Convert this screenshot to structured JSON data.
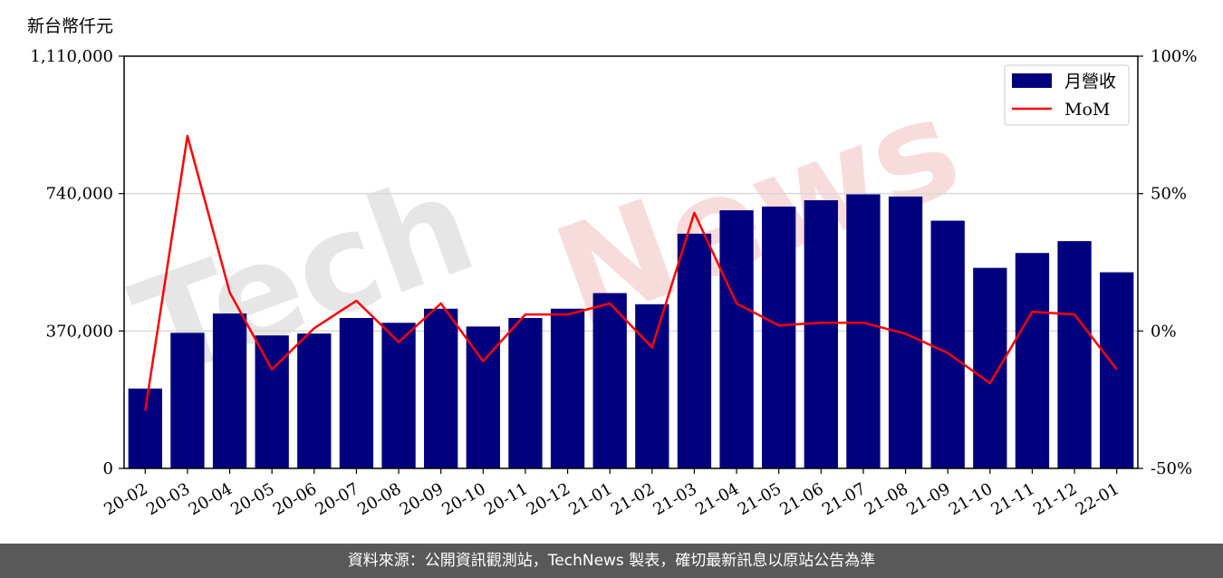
{
  "unit_label": "新台幣仟元",
  "footer_text": "資料來源：公開資訊觀測站，TechNews 製表，確切最新訊息以原站公告為準",
  "watermark": {
    "left": "Tech",
    "right": "News"
  },
  "colors": {
    "bar": "#00007f",
    "line": "#ff0000",
    "grid": "#d9d9d9",
    "footer_bg": "#595959"
  },
  "chart_data": {
    "type": "bar",
    "categories": [
      "20-02",
      "20-03",
      "20-04",
      "20-05",
      "20-06",
      "20-07",
      "20-08",
      "20-09",
      "20-10",
      "20-11",
      "20-12",
      "21-01",
      "21-02",
      "21-03",
      "21-04",
      "21-05",
      "21-06",
      "21-07",
      "21-08",
      "21-09",
      "21-10",
      "21-11",
      "21-12",
      "22-01"
    ],
    "series": [
      {
        "name": "月營收",
        "type": "bar",
        "axis": "left",
        "values": [
          215000,
          365000,
          417000,
          358000,
          363000,
          405000,
          392000,
          430000,
          382000,
          405000,
          430000,
          472000,
          442000,
          632000,
          695000,
          705000,
          722000,
          738000,
          732000,
          667000,
          540000,
          580000,
          612000,
          528000
        ]
      },
      {
        "name": "MoM",
        "type": "line",
        "axis": "right",
        "values": [
          -29,
          71,
          14,
          -14,
          1,
          11,
          -4,
          10,
          -11,
          6,
          6,
          10,
          -6,
          43,
          10,
          2,
          3,
          3,
          -1,
          -8,
          -19,
          7,
          6,
          -14
        ]
      }
    ],
    "y_left": {
      "ylim": [
        0,
        1110000
      ],
      "ticks": [
        0,
        370000,
        740000,
        1110000
      ],
      "tick_labels": [
        "0",
        "370,000",
        "740,000",
        "1,110,000"
      ]
    },
    "y_right": {
      "ylim": [
        -50,
        100
      ],
      "ticks": [
        -50,
        0,
        50,
        100
      ],
      "tick_labels": [
        "-50%",
        "0%",
        "50%",
        "100%"
      ]
    },
    "grid": "horizontal",
    "legend_position": "top-right"
  }
}
